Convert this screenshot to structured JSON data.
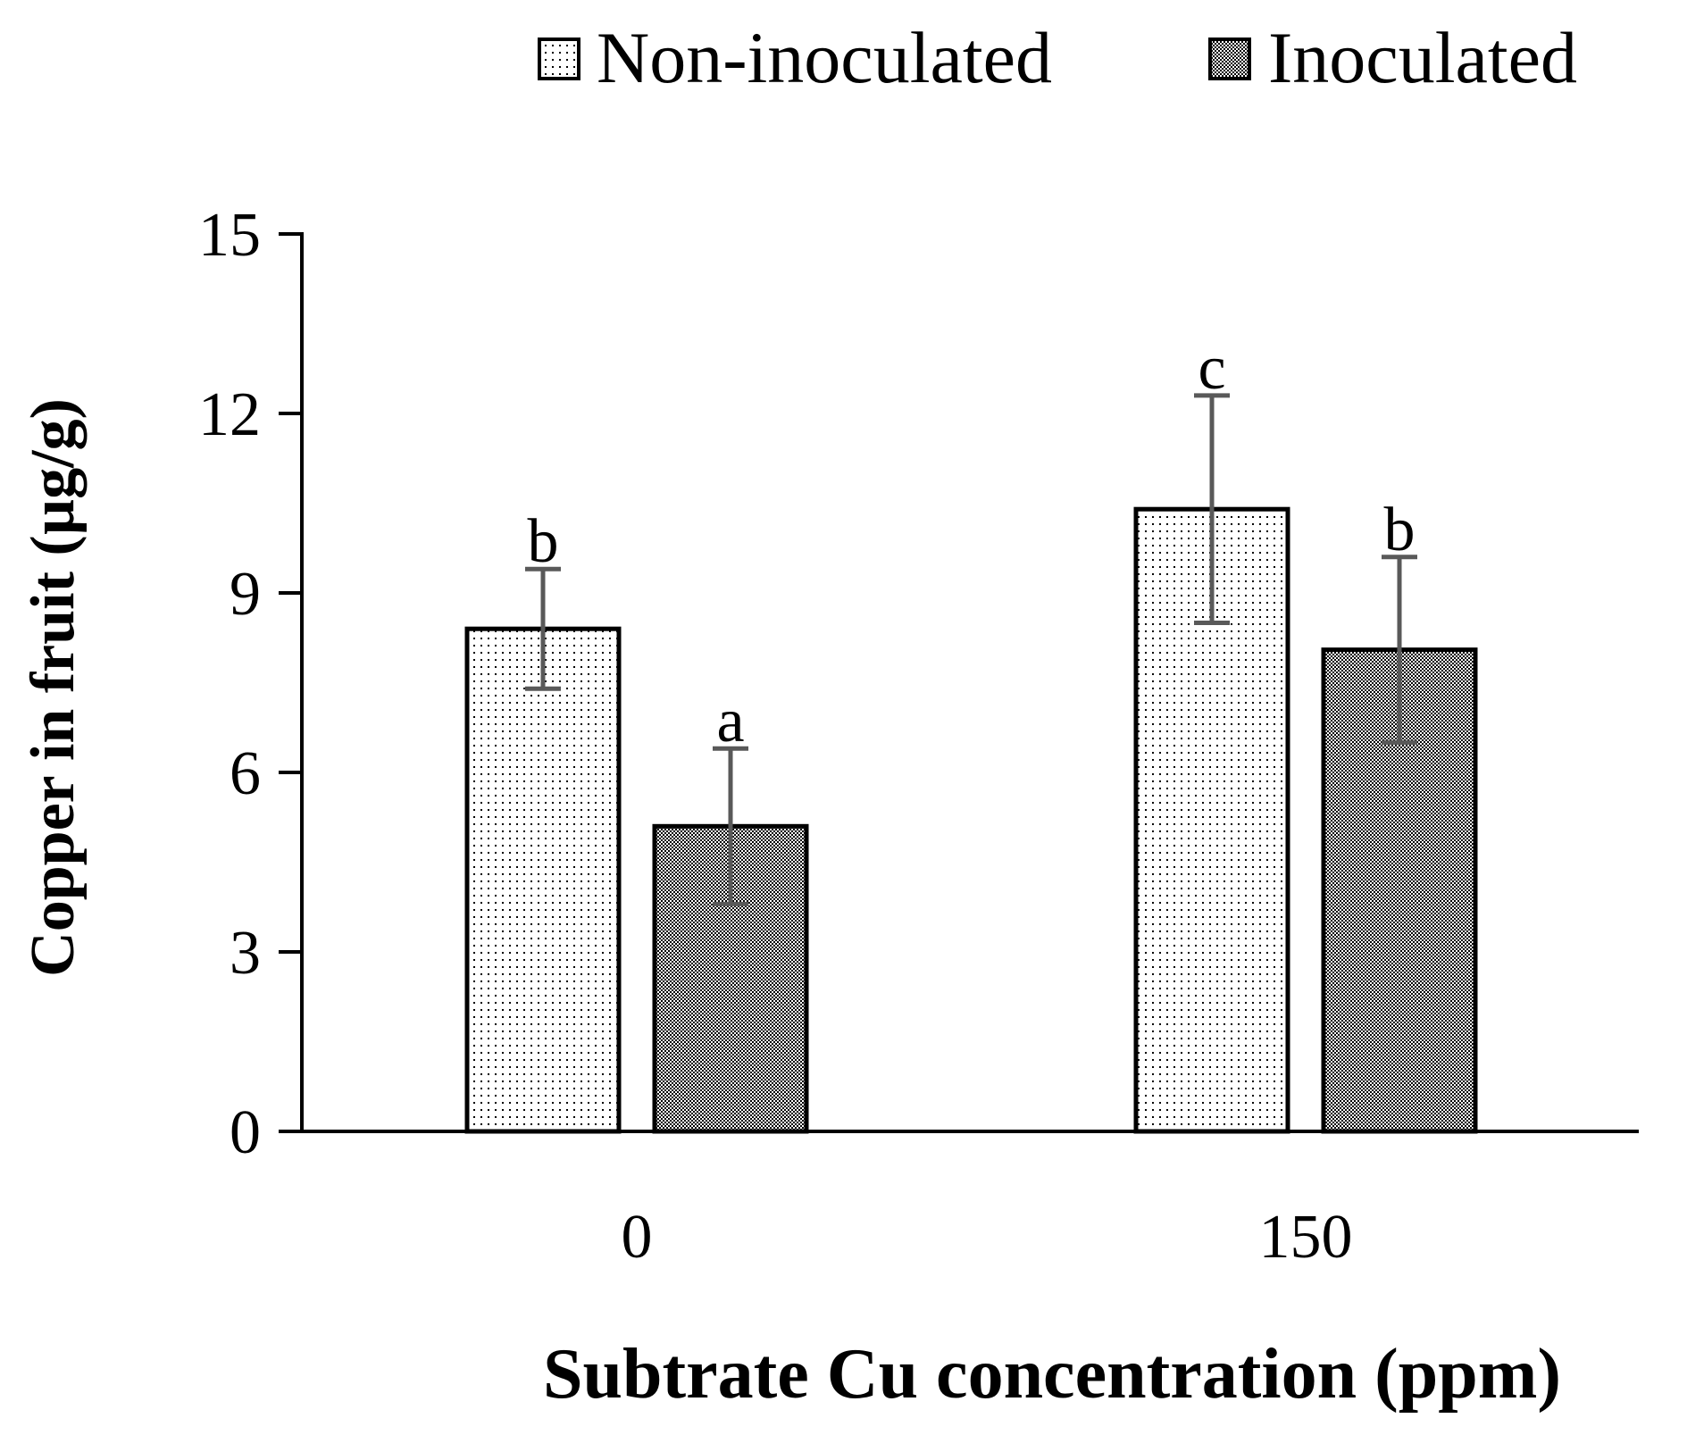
{
  "chart_data": {
    "type": "bar",
    "title": "",
    "xlabel": "Subtrate Cu concentration (ppm)",
    "ylabel": "Copper in fruit (µg/g)",
    "categories": [
      "0",
      "150"
    ],
    "ylim": [
      0,
      15
    ],
    "yticks": [
      "0",
      "3",
      "6",
      "9",
      "12",
      "15"
    ],
    "legend_position": "top",
    "series": [
      {
        "name": "Non-inoculated",
        "pattern": "sparse-dots",
        "values": [
          8.4,
          10.4
        ],
        "errors": [
          1.0,
          1.9
        ],
        "labels": [
          "b",
          "c"
        ]
      },
      {
        "name": "Inoculated",
        "pattern": "dense-checker",
        "values": [
          5.1,
          8.05
        ],
        "errors": [
          1.3,
          1.55
        ],
        "labels": [
          "a",
          "b"
        ]
      }
    ],
    "colors": {
      "bar_outline": "#000000",
      "error_bar": "#595959",
      "axis": "#000000"
    }
  }
}
